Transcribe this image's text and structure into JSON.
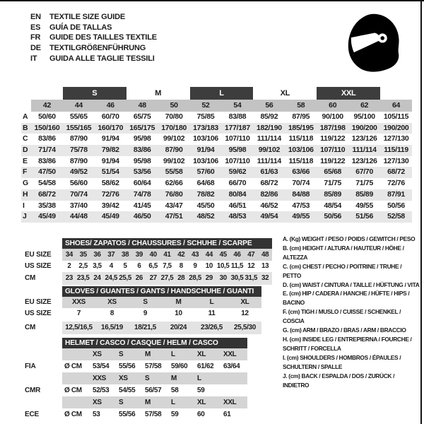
{
  "header": {
    "languages": [
      {
        "code": "EN",
        "title": "TEXTILE SIZE GUIDE"
      },
      {
        "code": "ES",
        "title": "GUÍA DE TALLAS"
      },
      {
        "code": "FR",
        "title": "GUIDE DES TAILLES TEXTILE"
      },
      {
        "code": "DE",
        "title": "TEXTILGRÖßENFÜHRUNG"
      },
      {
        "code": "IT",
        "title": "GUIDA ALLE TAGLIE TESSILI"
      }
    ],
    "icons": {
      "helmet": "racing-helmet-icon"
    }
  },
  "textile_table": {
    "size_groups": [
      {
        "label": "S",
        "dark": true
      },
      {
        "label": "M",
        "dark": false
      },
      {
        "label": "L",
        "dark": true
      },
      {
        "label": "XL",
        "dark": false
      },
      {
        "label": "XXL",
        "dark": true
      }
    ],
    "sizes": [
      "42",
      "44",
      "46",
      "48",
      "50",
      "52",
      "54",
      "56",
      "58",
      "60",
      "62",
      "64"
    ],
    "rows": [
      {
        "key": "A",
        "values": [
          "50/60",
          "55/65",
          "60/70",
          "65/75",
          "70/80",
          "75/85",
          "83/88",
          "85/92",
          "87/95",
          "90/100",
          "95/100",
          "105/115"
        ]
      },
      {
        "key": "B",
        "values": [
          "150/160",
          "155/165",
          "160/170",
          "165/175",
          "170/180",
          "173/183",
          "177/187",
          "182/190",
          "185/195",
          "187/198",
          "190/200",
          "190/200"
        ]
      },
      {
        "key": "C",
        "values": [
          "83/86",
          "87/90",
          "91/94",
          "95/98",
          "99/102",
          "103/106",
          "107/110",
          "111/114",
          "115/118",
          "119/122",
          "123/126",
          "127/130"
        ]
      },
      {
        "key": "D",
        "values": [
          "71/74",
          "75/78",
          "79/82",
          "83/86",
          "87/90",
          "91/94",
          "95/98",
          "99/102",
          "103/106",
          "107/110",
          "111/114",
          "115/119"
        ]
      },
      {
        "key": "E",
        "values": [
          "83/86",
          "87/90",
          "91/94",
          "95/98",
          "99/102",
          "103/106",
          "107/110",
          "111/114",
          "115/118",
          "119/122",
          "123/126",
          "127/130"
        ]
      },
      {
        "key": "F",
        "values": [
          "47/50",
          "49/52",
          "51/54",
          "53/56",
          "55/58",
          "57/60",
          "59/62",
          "61/63",
          "63/66",
          "65/68",
          "67/70",
          "68/72"
        ]
      },
      {
        "key": "G",
        "values": [
          "54/58",
          "56/60",
          "58/62",
          "60/64",
          "62/66",
          "64/68",
          "66/70",
          "68/72",
          "70/74",
          "71/75",
          "71/75",
          "72/76"
        ]
      },
      {
        "key": "H",
        "values": [
          "68/72",
          "70/74",
          "72/76",
          "74/78",
          "76/80",
          "78/82",
          "80/84",
          "82/86",
          "84/88",
          "85/89",
          "85/89",
          "87/91"
        ]
      },
      {
        "key": "I",
        "values": [
          "35/38",
          "37/40",
          "39/42",
          "41/45",
          "43/47",
          "45/50",
          "46/51",
          "46/52",
          "47/53",
          "48/54",
          "49/55",
          "50/56"
        ]
      },
      {
        "key": "J",
        "values": [
          "45/49",
          "44/48",
          "45/49",
          "46/50",
          "47/51",
          "48/52",
          "48/53",
          "49/54",
          "49/55",
          "50/56",
          "51/56",
          "52/58"
        ]
      }
    ]
  },
  "shoes_table": {
    "title": "SHOES/ ZAPATOS / CHAUSSURES / SCHUHE / SCARPE",
    "rows": [
      {
        "label": "EU SIZE",
        "values": [
          "34",
          "35",
          "36",
          "37",
          "38",
          "39",
          "40",
          "41",
          "42",
          "43",
          "44",
          "45",
          "46",
          "47",
          "48"
        ]
      },
      {
        "label": "US SIZE",
        "values": [
          "2",
          "2,5",
          "3,5",
          "4",
          "5",
          "6",
          "6,5",
          "7,5",
          "8",
          "9",
          "10",
          "10,5",
          "11,5",
          "12",
          "13"
        ]
      },
      {
        "label": "CM",
        "values": [
          "23",
          "23,5",
          "24",
          "24,5",
          "25,5",
          "26",
          "27",
          "27,5",
          "28",
          "28,5",
          "29",
          "30",
          "30,5",
          "31,5",
          "32"
        ]
      }
    ]
  },
  "gloves_table": {
    "title": "GLOVES / GUANTES / GANTS / HANDSCHUHE / GUANTI",
    "rows": [
      {
        "label": "EU SIZE",
        "values": [
          "XXS",
          "XS",
          "S",
          "M",
          "L",
          "XL"
        ]
      },
      {
        "label": "US SIZE",
        "values": [
          "7",
          "8",
          "9",
          "10",
          "11",
          "12"
        ]
      },
      {
        "label": "CM",
        "values": [
          "12,5/16,5",
          "16,5/19",
          "18/21,5",
          "20/24",
          "23/26,5",
          "25,5/30"
        ]
      }
    ]
  },
  "helmet_table": {
    "title": "HELMET / CASCO / CASQUE / HELM / CASCO",
    "sections": [
      {
        "label": "FIA",
        "unit": "Ø CM",
        "sizes": [
          "XS",
          "S",
          "M",
          "L",
          "XL",
          "XXL"
        ],
        "values": [
          "53/54",
          "55/56",
          "57/58",
          "59/60",
          "61/62",
          "63/64"
        ]
      },
      {
        "label": "CMR",
        "unit": "Ø CM",
        "sizes": [
          "XXS",
          "XS",
          "S",
          "M",
          "L",
          ""
        ],
        "values": [
          "52/53",
          "54/55",
          "56/57",
          "58",
          "59",
          ""
        ]
      },
      {
        "label": "ECE",
        "unit": "Ø CM",
        "sizes": [
          "XS",
          "S",
          "M",
          "L",
          "XL",
          "XXL"
        ],
        "values": [
          "53",
          "55/56",
          "57/58",
          "59",
          "60",
          "61"
        ]
      }
    ]
  },
  "legend": {
    "items": [
      "A. (Kg) WEIGHT / PESO / POIDS / GEWITCH / PESO",
      "B. (cm) HEIGHT / ALTURA / HAUTEUR / HÖHE / ALTEZZA",
      "C. (cm) CHEST / PECHO / POITRINE / TRUHE / PETTO",
      "D. (cm) WAIST / CINTURA / TAILLE / HÜFTUNG / VITA",
      "E. (cm) HIP / CADERA / HANCHE / HÜFTE / HIPS /  BACINO",
      "F.  (cm) TIGH / MUSLO / CUISSE / SCHENKEL / COSCIA",
      "G. (cm) ARM  / BRAZO / BRAS / ARM / BRACCIO",
      "H. (cm) INSIDE LEG / ENTREPIERNA / FOURCHE / SCHRITT / FORCELLA",
      "I.  (cm) SHOULDERS / HOMBROS / ÉPAULES / SCHULTERN / SPALLE",
      "J. (cm) BACK / ESPALDA / DOS / ZURÜCK / INDIETRO"
    ]
  },
  "colors": {
    "dark_bar": "#3d3d3d",
    "sub_header_bar": "#333333",
    "size_row_gray": "#c3c3c3",
    "stripe_gray": "#e7e7e7",
    "sub_row_gray": "#d5d5d5",
    "sub_row_light": "#e3e3e3",
    "text": "#1c1c1c"
  }
}
